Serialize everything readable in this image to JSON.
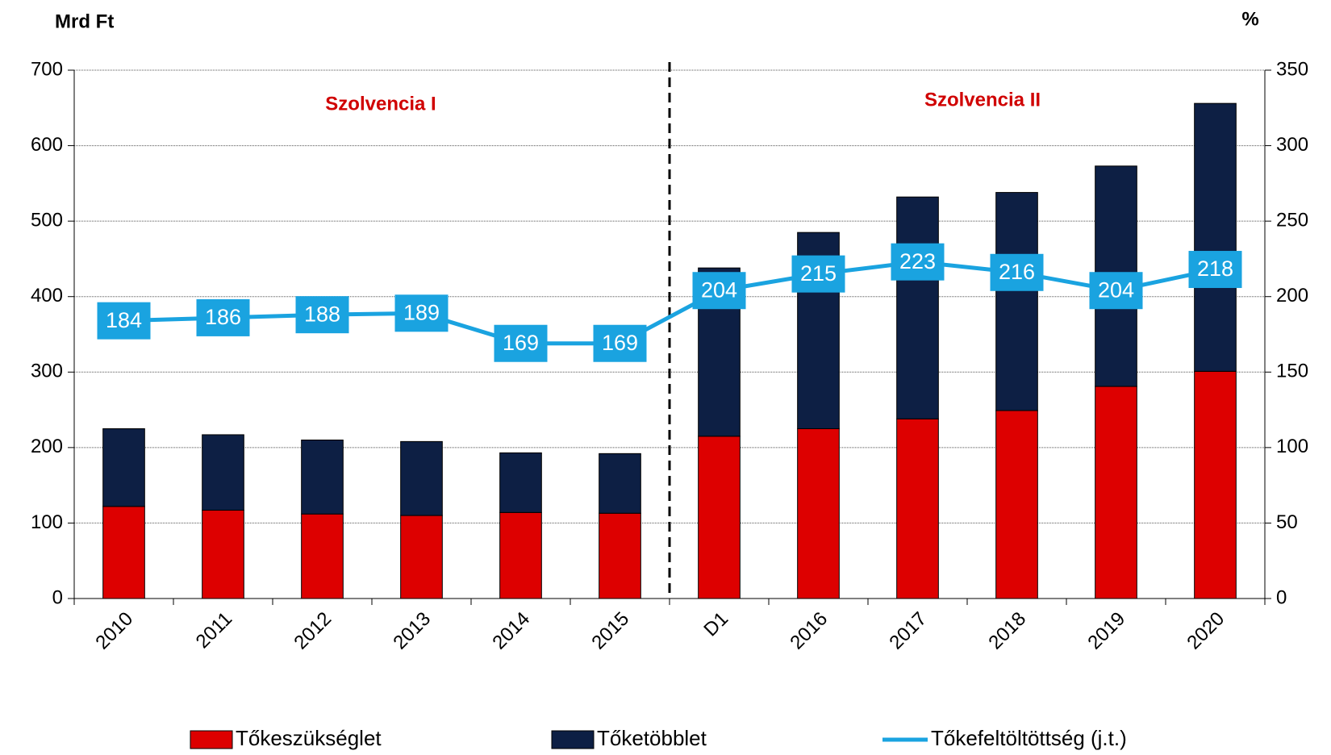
{
  "chart_data": {
    "type": "bar",
    "y_label": "Mrd Ft",
    "y2_label": "%",
    "annotations": [
      "Szolvencia I",
      "Szolvencia II"
    ],
    "categories": [
      "2010",
      "2011",
      "2012",
      "2013",
      "2014",
      "2015",
      "D1",
      "2016",
      "2017",
      "2018",
      "2019",
      "2020"
    ],
    "series": [
      {
        "name": "Tőkeszükséglet",
        "color": "#dd0000",
        "values": [
          122,
          117,
          112,
          110,
          114,
          113,
          215,
          225,
          238,
          249,
          281,
          301
        ]
      },
      {
        "name": "Tőketöbblet",
        "color": "#0d1f44",
        "values": [
          103,
          100,
          98,
          98,
          79,
          79,
          223,
          260,
          294,
          289,
          292,
          355
        ]
      },
      {
        "name": "Tőkefeltöltöttség (j.t.)",
        "color": "#1aa3e0",
        "axis": "y2",
        "type": "line",
        "values": [
          184,
          186,
          188,
          189,
          169,
          169,
          204,
          215,
          223,
          216,
          204,
          218
        ]
      }
    ],
    "stacked": true,
    "ylim": [
      0,
      700
    ],
    "yticks": [
      0,
      100,
      200,
      300,
      400,
      500,
      600,
      700
    ],
    "y2lim": [
      0,
      350
    ],
    "y2ticks": [
      0,
      50,
      100,
      150,
      200,
      250,
      300,
      350
    ],
    "grid": true,
    "legend": "bottom"
  }
}
